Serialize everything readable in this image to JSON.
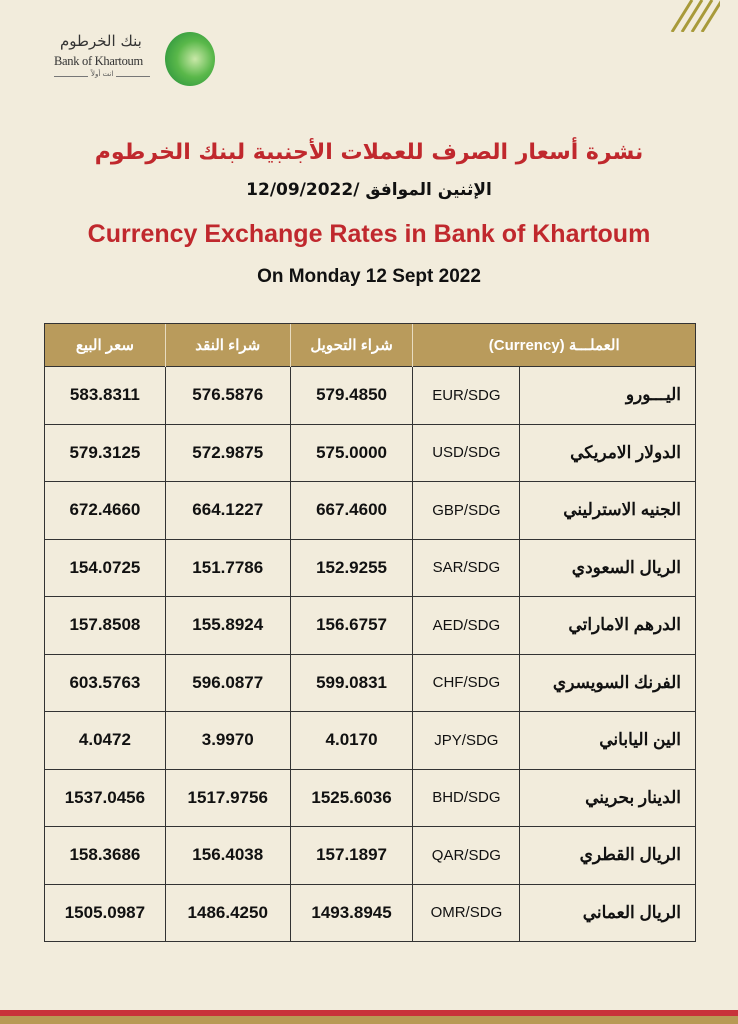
{
  "logo": {
    "arabic": "بنك الخرطوم",
    "english": "Bank of Khartoum",
    "tagline": "انت أولاً"
  },
  "header": {
    "title_ar": "نشرة أسعار الصرف للعملات الأجنبية لبنك الخرطوم",
    "date_ar": "الإثنين الموافق  /12/09/2022",
    "title_en": "Currency Exchange Rates in Bank of Khartoum",
    "date_en": "On Monday 12 Sept 2022"
  },
  "colors": {
    "title": "#c0282d",
    "header_bg": "#b99b5c",
    "page_bg": "#f2ecdc"
  },
  "table": {
    "headers": {
      "sell": "سعر البيع",
      "cash_buy": "شراء النقد",
      "transfer_buy": "شراء التحويل",
      "currency": "العملـــة    (Currency)"
    },
    "rows": [
      {
        "name": "اليـــورو",
        "pair": "EUR/SDG",
        "transfer_buy": "579.4850",
        "cash_buy": "576.5876",
        "sell": "583.8311"
      },
      {
        "name": "الدولار الامريكي",
        "pair": "USD/SDG",
        "transfer_buy": "575.0000",
        "cash_buy": "572.9875",
        "sell": "579.3125"
      },
      {
        "name": "الجنيه الاسترليني",
        "pair": "GBP/SDG",
        "transfer_buy": "667.4600",
        "cash_buy": "664.1227",
        "sell": "672.4660"
      },
      {
        "name": "الريال السعودي",
        "pair": "SAR/SDG",
        "transfer_buy": "152.9255",
        "cash_buy": "151.7786",
        "sell": "154.0725"
      },
      {
        "name": "الدرهم الاماراتي",
        "pair": "AED/SDG",
        "transfer_buy": "156.6757",
        "cash_buy": "155.8924",
        "sell": "157.8508"
      },
      {
        "name": "الفرنك السويسري",
        "pair": "CHF/SDG",
        "transfer_buy": "599.0831",
        "cash_buy": "596.0877",
        "sell": "603.5763"
      },
      {
        "name": "الين الياباني",
        "pair": "JPY/SDG",
        "transfer_buy": "4.0170",
        "cash_buy": "3.9970",
        "sell": "4.0472"
      },
      {
        "name": "الدينار بحريني",
        "pair": "BHD/SDG",
        "transfer_buy": "1525.6036",
        "cash_buy": "1517.9756",
        "sell": "1537.0456"
      },
      {
        "name": "الريال القطري",
        "pair": "QAR/SDG",
        "transfer_buy": "157.1897",
        "cash_buy": "156.4038",
        "sell": "158.3686"
      },
      {
        "name": "الريال العماني",
        "pair": "OMR/SDG",
        "transfer_buy": "1493.8945",
        "cash_buy": "1486.4250",
        "sell": "1505.0987"
      }
    ]
  }
}
